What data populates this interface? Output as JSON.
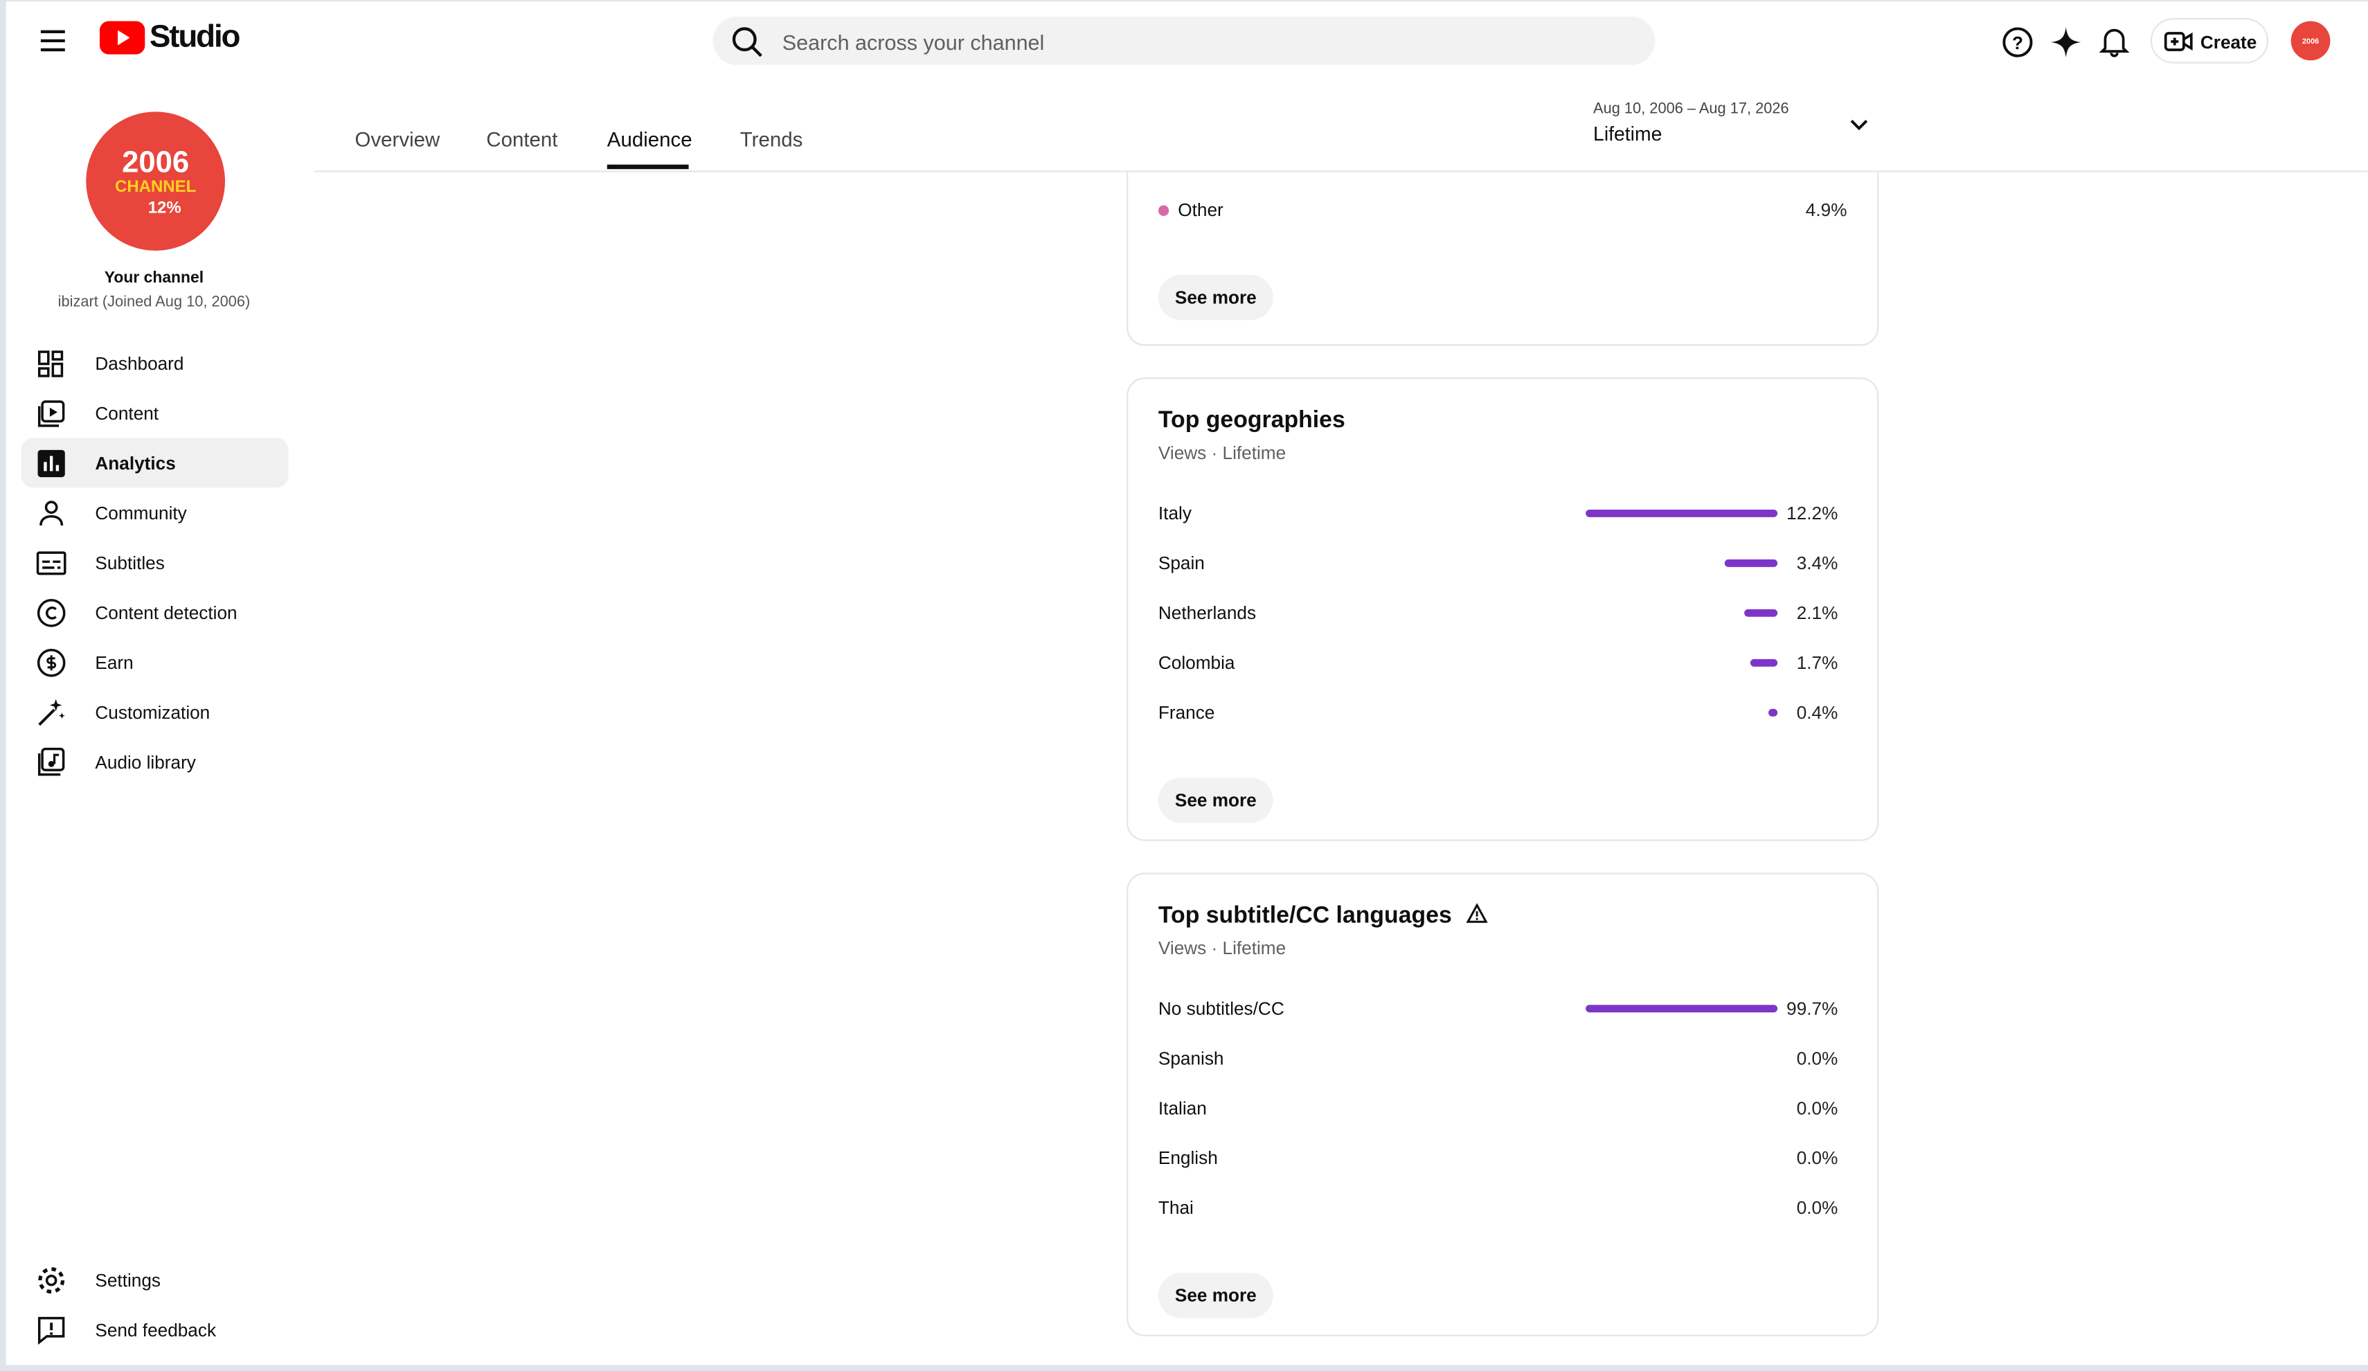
{
  "header": {
    "logo": "Studio",
    "search_placeholder": "Search across your channel",
    "create": "Create"
  },
  "tabs": [
    "Overview",
    "Content",
    "Audience",
    "Trends"
  ],
  "date_range": {
    "range": "Aug 10, 2006 – Aug 17, 2026",
    "period": "Lifetime"
  },
  "channel": {
    "avatar_lines": [
      "2006",
      "CHANNEL",
      "12%"
    ],
    "name": "Your channel",
    "handle": "ibizart (Joined Aug 10, 2006)"
  },
  "nav": [
    "Dashboard",
    "Content",
    "Analytics",
    "Community",
    "Subtitles",
    "Content detection",
    "Earn",
    "Customization",
    "Audio library"
  ],
  "nav_footer": [
    "Settings",
    "Send feedback"
  ],
  "cards": [
    {
      "rows": [
        {
          "label": "Other",
          "value_label": "4.9%"
        }
      ],
      "button": "See more"
    },
    {
      "title": "Top geographies",
      "subtitle": "Views · Lifetime",
      "button": "See more",
      "rows": [
        {
          "label": "Italy",
          "value": 12.2,
          "value_label": "12.2%"
        },
        {
          "label": "Spain",
          "value": 3.4,
          "value_label": "3.4%"
        },
        {
          "label": "Netherlands",
          "value": 2.1,
          "value_label": "2.1%"
        },
        {
          "label": "Colombia",
          "value": 1.7,
          "value_label": "1.7%"
        },
        {
          "label": "France",
          "value": 0.4,
          "value_label": "0.4%"
        }
      ]
    },
    {
      "title": "Top subtitle/CC languages",
      "subtitle": "Views · Lifetime",
      "button": "See more",
      "warning": true,
      "rows": [
        {
          "label": "No subtitles/CC",
          "value": 99.7,
          "value_label": "99.7%"
        },
        {
          "label": "Spanish",
          "value": 0.0,
          "value_label": "0.0%"
        },
        {
          "label": "Italian",
          "value": 0.0,
          "value_label": "0.0%"
        },
        {
          "label": "English",
          "value": 0.0,
          "value_label": "0.0%"
        },
        {
          "label": "Thai",
          "value": 0.0,
          "value_label": "0.0%"
        }
      ]
    }
  ]
}
